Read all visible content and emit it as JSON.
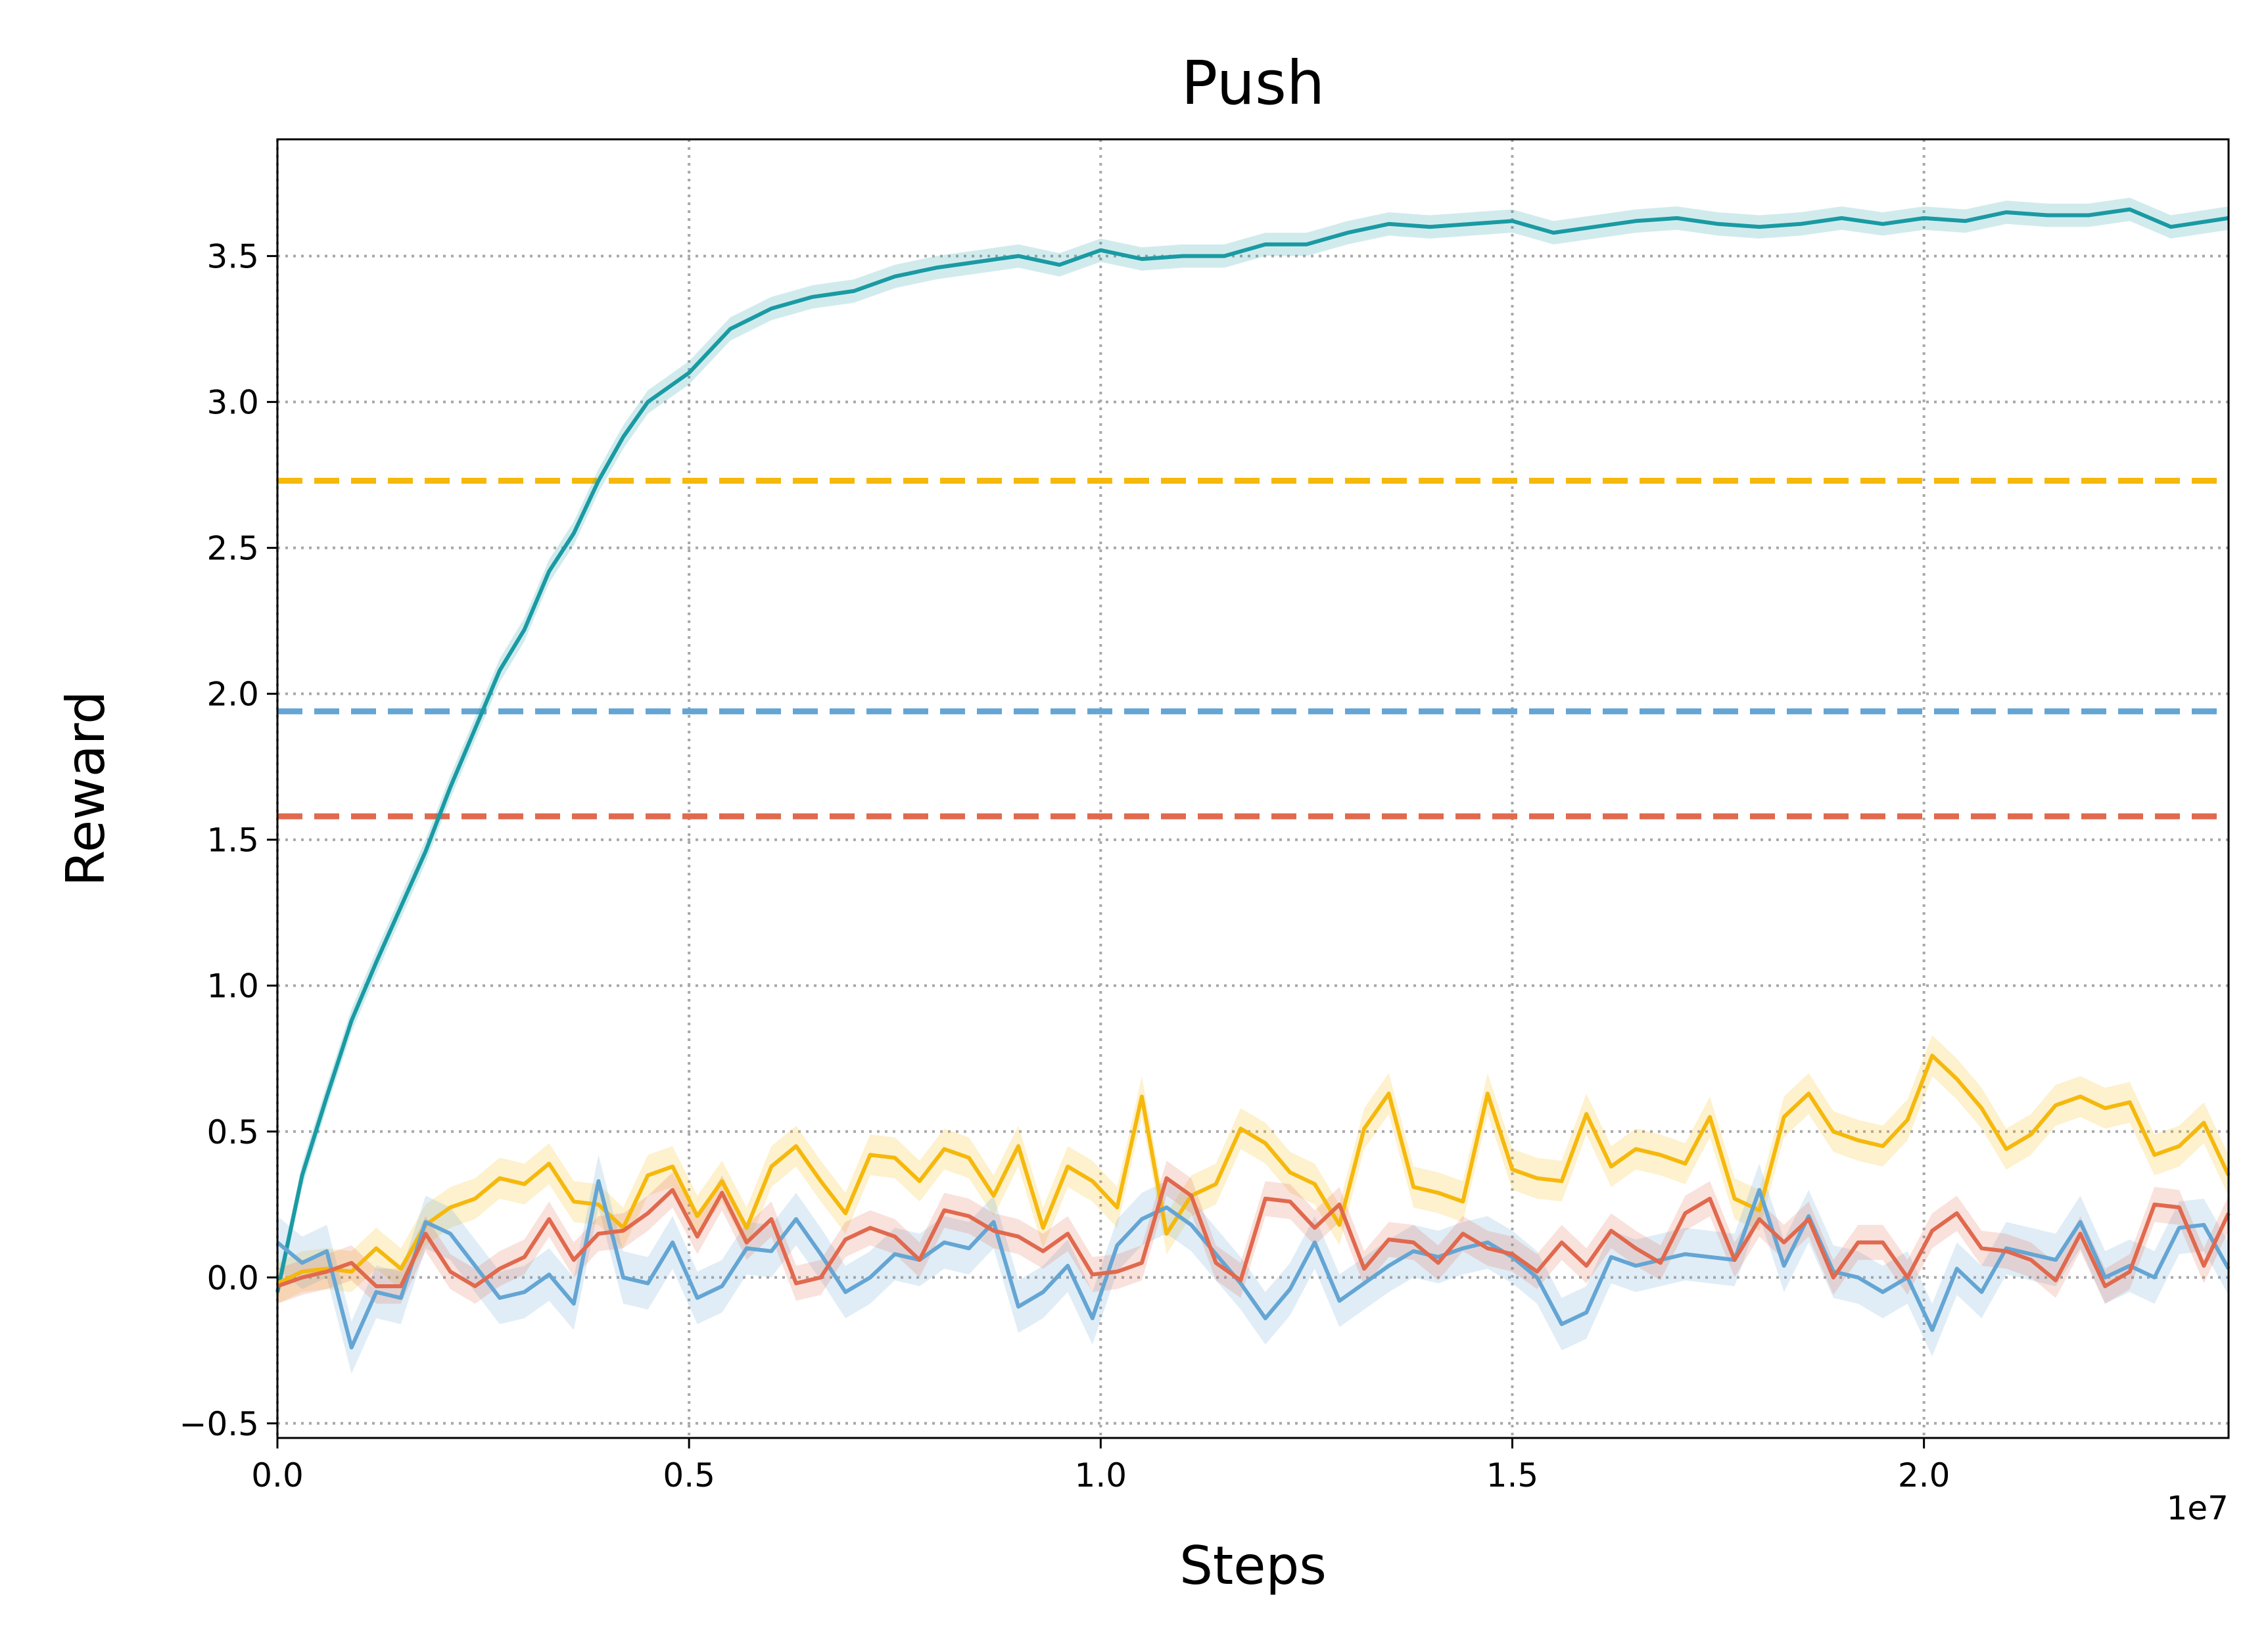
{
  "chart_data": {
    "type": "line",
    "title": "Push",
    "xlabel": "Steps",
    "ylabel": "Reward",
    "x_offset_label": "1e7",
    "xlim": [
      0,
      2.37
    ],
    "ylim": [
      -0.55,
      3.9
    ],
    "grid": true,
    "x_ticks": [
      0.0,
      0.5,
      1.0,
      1.5,
      2.0
    ],
    "x_tick_labels": [
      "0.0",
      "0.5",
      "1.0",
      "1.5",
      "2.0"
    ],
    "y_ticks": [
      -0.5,
      0.0,
      0.5,
      1.0,
      1.5,
      2.0,
      2.5,
      3.0,
      3.5
    ],
    "y_tick_labels": [
      "−0.5",
      "0.0",
      "0.5",
      "1.0",
      "1.5",
      "2.0",
      "2.5",
      "3.0",
      "3.5"
    ],
    "reference_lines": [
      {
        "y": 2.73,
        "color": "#F5B80C"
      },
      {
        "y": 1.94,
        "color": "#64A5D4"
      },
      {
        "y": 1.58,
        "color": "#E0694E"
      }
    ],
    "series": [
      {
        "color": "#1A9AA3",
        "x": [
          0.0,
          0.03,
          0.06,
          0.09,
          0.12,
          0.15,
          0.18,
          0.21,
          0.24,
          0.27,
          0.3,
          0.33,
          0.36,
          0.39,
          0.42,
          0.45,
          0.5,
          0.55,
          0.6,
          0.65,
          0.7,
          0.75,
          0.8,
          0.85,
          0.9,
          0.95,
          1.0,
          1.05,
          1.1,
          1.15,
          1.2,
          1.25,
          1.3,
          1.35,
          1.4,
          1.45,
          1.5,
          1.55,
          1.6,
          1.65,
          1.7,
          1.75,
          1.8,
          1.85,
          1.9,
          1.95,
          2.0,
          2.05,
          2.1,
          2.15,
          2.2,
          2.25,
          2.3,
          2.37
        ],
        "values": [
          -0.05,
          0.35,
          0.62,
          0.88,
          1.08,
          1.27,
          1.46,
          1.68,
          1.88,
          2.08,
          2.22,
          2.42,
          2.55,
          2.73,
          2.88,
          3.0,
          3.1,
          3.25,
          3.32,
          3.36,
          3.38,
          3.43,
          3.46,
          3.48,
          3.5,
          3.47,
          3.52,
          3.49,
          3.5,
          3.5,
          3.54,
          3.54,
          3.58,
          3.61,
          3.6,
          3.61,
          3.62,
          3.58,
          3.6,
          3.62,
          3.63,
          3.61,
          3.6,
          3.61,
          3.63,
          3.61,
          3.63,
          3.62,
          3.65,
          3.64,
          3.64,
          3.66,
          3.6,
          3.63
        ],
        "band": 0.04
      },
      {
        "color": "#F5B80C",
        "x": [
          0.0,
          0.03,
          0.06,
          0.09,
          0.12,
          0.15,
          0.18,
          0.21,
          0.24,
          0.27,
          0.3,
          0.33,
          0.36,
          0.39,
          0.42,
          0.45,
          0.48,
          0.51,
          0.54,
          0.57,
          0.6,
          0.63,
          0.66,
          0.69,
          0.72,
          0.75,
          0.78,
          0.81,
          0.84,
          0.87,
          0.9,
          0.93,
          0.96,
          0.99,
          1.02,
          1.05,
          1.08,
          1.11,
          1.14,
          1.17,
          1.2,
          1.23,
          1.26,
          1.29,
          1.32,
          1.35,
          1.38,
          1.41,
          1.44,
          1.47,
          1.5,
          1.53,
          1.56,
          1.59,
          1.62,
          1.65,
          1.68,
          1.71,
          1.74,
          1.77,
          1.8,
          1.83,
          1.86,
          1.89,
          1.92,
          1.95,
          1.98,
          2.01,
          2.04,
          2.07,
          2.1,
          2.13,
          2.16,
          2.19,
          2.22,
          2.25,
          2.28,
          2.31,
          2.34,
          2.37
        ],
        "values": [
          -0.02,
          0.02,
          0.03,
          0.02,
          0.1,
          0.03,
          0.18,
          0.24,
          0.27,
          0.34,
          0.32,
          0.39,
          0.26,
          0.25,
          0.17,
          0.35,
          0.38,
          0.21,
          0.33,
          0.17,
          0.38,
          0.45,
          0.33,
          0.22,
          0.42,
          0.41,
          0.33,
          0.44,
          0.41,
          0.28,
          0.45,
          0.17,
          0.38,
          0.33,
          0.24,
          0.62,
          0.15,
          0.28,
          0.32,
          0.51,
          0.46,
          0.36,
          0.32,
          0.18,
          0.51,
          0.63,
          0.31,
          0.29,
          0.26,
          0.63,
          0.37,
          0.34,
          0.33,
          0.56,
          0.38,
          0.44,
          0.42,
          0.39,
          0.55,
          0.27,
          0.23,
          0.55,
          0.63,
          0.5,
          0.47,
          0.45,
          0.54,
          0.76,
          0.68,
          0.58,
          0.44,
          0.49,
          0.59,
          0.62,
          0.58,
          0.6,
          0.42,
          0.45,
          0.53,
          0.35
        ],
        "band": 0.07
      },
      {
        "color": "#64A5D4",
        "x": [
          0.0,
          0.03,
          0.06,
          0.09,
          0.12,
          0.15,
          0.18,
          0.21,
          0.24,
          0.27,
          0.3,
          0.33,
          0.36,
          0.39,
          0.42,
          0.45,
          0.48,
          0.51,
          0.54,
          0.57,
          0.6,
          0.63,
          0.66,
          0.69,
          0.72,
          0.75,
          0.78,
          0.81,
          0.84,
          0.87,
          0.9,
          0.93,
          0.96,
          0.99,
          1.02,
          1.05,
          1.08,
          1.11,
          1.14,
          1.17,
          1.2,
          1.23,
          1.26,
          1.29,
          1.32,
          1.35,
          1.38,
          1.41,
          1.44,
          1.47,
          1.5,
          1.53,
          1.56,
          1.59,
          1.62,
          1.65,
          1.68,
          1.71,
          1.74,
          1.77,
          1.8,
          1.83,
          1.86,
          1.89,
          1.92,
          1.95,
          1.98,
          2.01,
          2.04,
          2.07,
          2.1,
          2.13,
          2.16,
          2.19,
          2.22,
          2.25,
          2.28,
          2.31,
          2.34,
          2.37
        ],
        "values": [
          0.12,
          0.05,
          0.09,
          -0.24,
          -0.05,
          -0.07,
          0.19,
          0.15,
          0.04,
          -0.07,
          -0.05,
          0.01,
          -0.09,
          0.33,
          0.0,
          -0.02,
          0.12,
          -0.07,
          -0.03,
          0.1,
          0.09,
          0.2,
          0.08,
          -0.05,
          0.0,
          0.08,
          0.06,
          0.12,
          0.1,
          0.19,
          -0.1,
          -0.05,
          0.04,
          -0.14,
          0.11,
          0.2,
          0.24,
          0.18,
          0.08,
          -0.02,
          -0.14,
          -0.04,
          0.12,
          -0.08,
          -0.02,
          0.04,
          0.09,
          0.07,
          0.1,
          0.12,
          0.07,
          0.0,
          -0.16,
          -0.12,
          0.07,
          0.04,
          0.06,
          0.08,
          0.07,
          0.06,
          0.3,
          0.04,
          0.21,
          0.02,
          0.0,
          -0.05,
          0.0,
          -0.18,
          0.03,
          -0.05,
          0.1,
          0.08,
          0.06,
          0.19,
          0.0,
          0.04,
          0.0,
          0.17,
          0.18,
          0.03
        ],
        "band": 0.09
      },
      {
        "color": "#E0694E",
        "x": [
          0.0,
          0.03,
          0.06,
          0.09,
          0.12,
          0.15,
          0.18,
          0.21,
          0.24,
          0.27,
          0.3,
          0.33,
          0.36,
          0.39,
          0.42,
          0.45,
          0.48,
          0.51,
          0.54,
          0.57,
          0.6,
          0.63,
          0.66,
          0.69,
          0.72,
          0.75,
          0.78,
          0.81,
          0.84,
          0.87,
          0.9,
          0.93,
          0.96,
          0.99,
          1.02,
          1.05,
          1.08,
          1.11,
          1.14,
          1.17,
          1.2,
          1.23,
          1.26,
          1.29,
          1.32,
          1.35,
          1.38,
          1.41,
          1.44,
          1.47,
          1.5,
          1.53,
          1.56,
          1.59,
          1.62,
          1.65,
          1.68,
          1.71,
          1.74,
          1.77,
          1.8,
          1.83,
          1.86,
          1.89,
          1.92,
          1.95,
          1.98,
          2.01,
          2.04,
          2.07,
          2.1,
          2.13,
          2.16,
          2.19,
          2.22,
          2.25,
          2.28,
          2.31,
          2.34,
          2.37
        ],
        "values": [
          -0.03,
          0.0,
          0.02,
          0.05,
          -0.03,
          -0.03,
          0.15,
          0.02,
          -0.03,
          0.03,
          0.07,
          0.2,
          0.06,
          0.15,
          0.16,
          0.22,
          0.3,
          0.14,
          0.29,
          0.12,
          0.2,
          -0.02,
          0.0,
          0.13,
          0.17,
          0.14,
          0.06,
          0.23,
          0.21,
          0.16,
          0.14,
          0.09,
          0.15,
          0.01,
          0.02,
          0.05,
          0.34,
          0.28,
          0.05,
          -0.01,
          0.27,
          0.26,
          0.17,
          0.25,
          0.03,
          0.13,
          0.12,
          0.05,
          0.15,
          0.1,
          0.08,
          0.02,
          0.12,
          0.04,
          0.16,
          0.1,
          0.05,
          0.22,
          0.27,
          0.06,
          0.2,
          0.12,
          0.2,
          0.0,
          0.12,
          0.12,
          0.0,
          0.16,
          0.22,
          0.1,
          0.09,
          0.06,
          -0.01,
          0.15,
          -0.03,
          0.02,
          0.25,
          0.24,
          0.04,
          0.22
        ],
        "band": 0.06
      }
    ]
  }
}
